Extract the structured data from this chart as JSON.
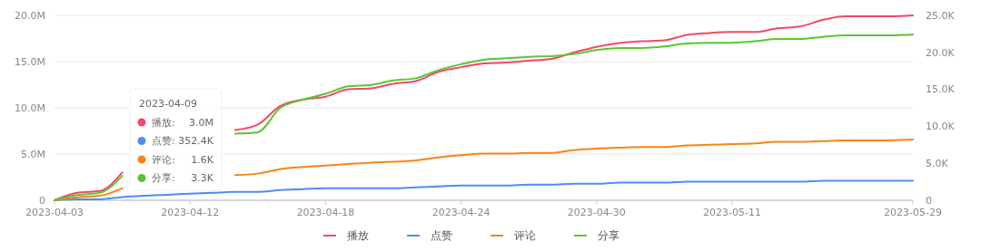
{
  "chart_data": {
    "type": "line",
    "categories": [
      "2023-04-03",
      null,
      null,
      null,
      null,
      null,
      "2023-04-12",
      null,
      null,
      null,
      null,
      null,
      "2023-04-18",
      null,
      null,
      null,
      null,
      null,
      "2023-04-24",
      null,
      null,
      null,
      null,
      null,
      "2023-04-30",
      null,
      null,
      null,
      null,
      null,
      "2023-05-11",
      null,
      null,
      null,
      null,
      null,
      null,
      null,
      "2023-05-29"
    ],
    "series": [
      {
        "name": "播放",
        "color": "#f5476a",
        "axis": "y",
        "values": [
          0,
          800000.0,
          1000000.0,
          3000000.0,
          null,
          null,
          null,
          null,
          7600000.0,
          8200000.0,
          10200000.0,
          10900000.0,
          11200000.0,
          12000000.0,
          12100000.0,
          12600000.0,
          12900000.0,
          13900000.0,
          14400000.0,
          14800000.0,
          14900000.0,
          15100000.0,
          15300000.0,
          16000000.0,
          16600000.0,
          17000000.0,
          17200000.0,
          17300000.0,
          17900000.0,
          18100000.0,
          18200000.0,
          18200000.0,
          18600000.0,
          18800000.0,
          19500000.0,
          19900000.0,
          19900000.0,
          19900000.0,
          20000000.0
        ]
      },
      {
        "name": "点赞",
        "color": "#4e8cf5",
        "axis": "y",
        "values": [
          0,
          100000.0,
          100000.0,
          352400.0,
          500000.0,
          600000.0,
          700000.0,
          800000.0,
          900000.0,
          900000.0,
          1100000.0,
          1200000.0,
          1300000.0,
          1300000.0,
          1300000.0,
          1300000.0,
          1400000.0,
          1500000.0,
          1600000.0,
          1600000.0,
          1600000.0,
          1700000.0,
          1700000.0,
          1800000.0,
          1800000.0,
          1900000.0,
          1900000.0,
          1900000.0,
          2000000.0,
          2000000.0,
          2000000.0,
          2000000.0,
          2000000.0,
          2000000.0,
          2100000.0,
          2100000.0,
          2100000.0,
          2100000.0,
          2100000.0
        ]
      },
      {
        "name": "评论",
        "color": "#fa8314",
        "axis": "y2",
        "values": [
          0,
          400,
          600,
          1600,
          null,
          null,
          null,
          null,
          3400,
          3600,
          4200,
          4500,
          4700,
          4900,
          5100,
          5200,
          5400,
          5800,
          6100,
          6300,
          6300,
          6400,
          6400,
          6800,
          7000,
          7100,
          7200,
          7200,
          7400,
          7500,
          7600,
          7700,
          7900,
          7900,
          8000,
          8100,
          8100,
          8100,
          8200
        ]
      },
      {
        "name": "分享",
        "color": "#5ac72e",
        "axis": "y2",
        "values": [
          0,
          700,
          1000,
          3300,
          null,
          null,
          null,
          null,
          9000,
          9200,
          12500,
          13600,
          14400,
          15400,
          15600,
          16200,
          16500,
          17600,
          18400,
          19000,
          19200,
          19400,
          19500,
          19800,
          20300,
          20600,
          20600,
          20800,
          21200,
          21300,
          21300,
          21500,
          21800,
          21800,
          22100,
          22300,
          22300,
          22300,
          22400
        ]
      }
    ],
    "ylim": [
      0,
      20000000
    ],
    "yticks": [
      0,
      {
        "value": 5000000,
        "label": "5.0M"
      },
      {
        "value": 10000000,
        "label": "10.0M"
      },
      {
        "value": 15000000,
        "label": "15.0M"
      },
      {
        "value": 20000000,
        "label": "20.0M"
      }
    ],
    "y2lim": [
      0,
      25000
    ],
    "y2ticks": [
      0,
      {
        "value": 5000,
        "label": "5.0K"
      },
      {
        "value": 10000,
        "label": "10.0K"
      },
      {
        "value": 15000,
        "label": "15.0K"
      },
      {
        "value": 20000,
        "label": "20.0K"
      },
      {
        "value": 25000,
        "label": "25.0K"
      }
    ],
    "grid": "y",
    "legend": "bottom",
    "marker": "none",
    "line_style": "solid",
    "annotations": [
      "2023-04-09",
      "播放:",
      "3.0M",
      "点赞:",
      "352.4K",
      "评论:",
      "1.6K",
      "分享:",
      "3.3K"
    ]
  }
}
